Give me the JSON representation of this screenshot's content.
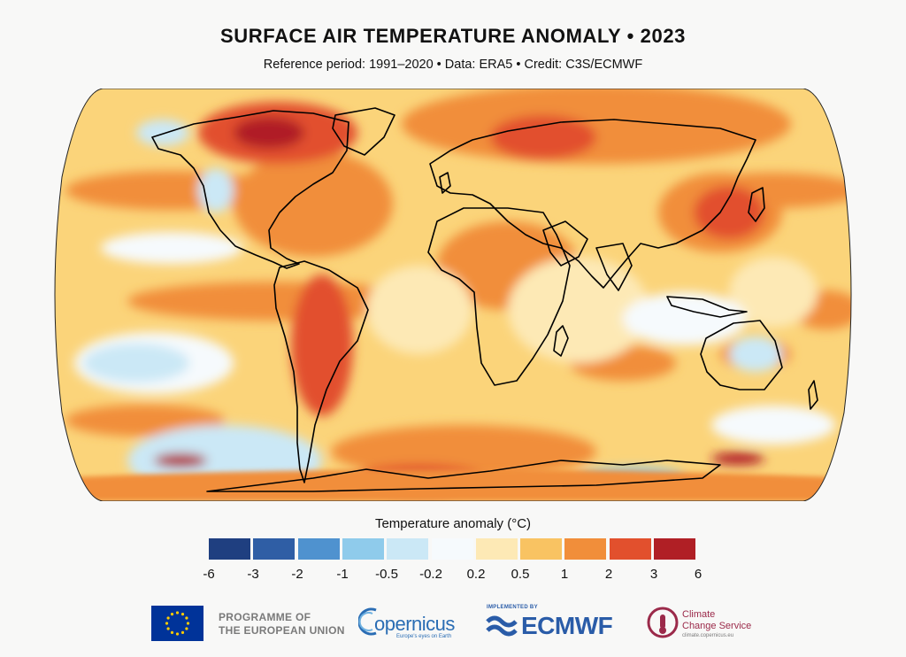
{
  "title": "SURFACE AIR TEMPERATURE ANOMALY • 2023",
  "subtitle": "Reference period: 1991–2020 • Data: ERA5 • Credit: C3S/ECMWF",
  "legend": {
    "title": "Temperature anomaly (°C)",
    "colors": [
      "#1f3f80",
      "#2f5ea5",
      "#4f92cf",
      "#8fcbeb",
      "#cbe8f6",
      "#f6fafd",
      "#fde9b5",
      "#f9c362",
      "#f18e3a",
      "#e2502d",
      "#b01f25"
    ],
    "ticks": [
      "-6",
      "-3",
      "-2",
      "-1",
      "-0.5",
      "-0.2",
      "0.2",
      "0.5",
      "1",
      "2",
      "3",
      "6"
    ]
  },
  "map": {
    "projection": "Robinson",
    "colors": {
      "ocean_base": "#fbd47a",
      "strong_warm": "#b01f25",
      "warm": "#e2502d",
      "moderate_warm": "#f18e3a",
      "mild_warm": "#f9c362",
      "slight_warm": "#fde9b5",
      "neutral": "#f6fafd",
      "slight_cool": "#cbe8f6",
      "cool": "#8fcbeb",
      "coastline": "#000000"
    }
  },
  "logos": {
    "eu_text_line1": "PROGRAMME OF",
    "eu_text_line2": "THE EUROPEAN UNION",
    "copernicus": "opernicus",
    "copernicus_tagline": "Europe's eyes on Earth",
    "implemented_by": "IMPLEMENTED BY",
    "ecmwf": "ECMWF",
    "c3s_line1": "Climate",
    "c3s_line2": "Change Service",
    "c3s_url": "climate.copernicus.eu"
  }
}
